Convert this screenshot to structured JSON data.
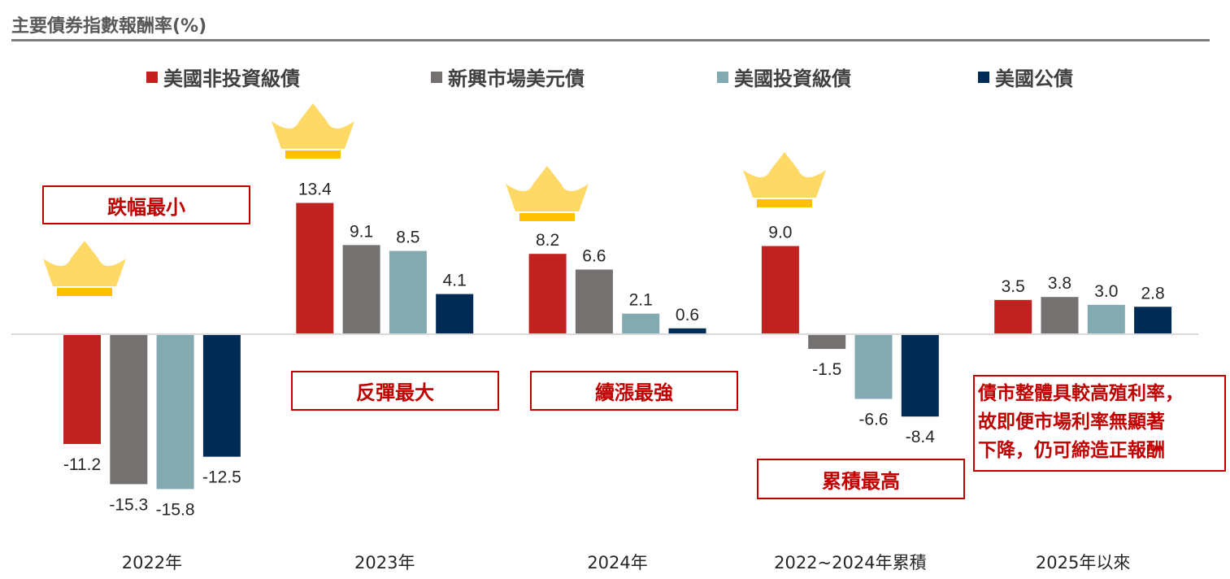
{
  "title": "主要債券指數報酬率(%)",
  "colors": {
    "high_yield": "#c0221f",
    "em_usd": "#767171",
    "investment_grade": "#84aab1",
    "treasury": "#002b55",
    "crown": "#ffd966",
    "callout": "#c00000",
    "axis": "#d9d9d9"
  },
  "chart_data": {
    "type": "bar",
    "title": "主要債券指數報酬率(%)",
    "categories": [
      "2022年",
      "2023年",
      "2024年",
      "2022~2024年累積",
      "2025年以來"
    ],
    "series": [
      {
        "name": "美國非投資級債",
        "values": [
          -11.2,
          13.4,
          8.2,
          9.0,
          3.5
        ]
      },
      {
        "name": "新興市場美元債",
        "values": [
          -15.3,
          9.1,
          6.6,
          -1.5,
          3.8
        ]
      },
      {
        "name": "美國投資級債",
        "values": [
          -15.8,
          8.5,
          2.1,
          -6.6,
          3.0
        ]
      },
      {
        "name": "美國公債",
        "values": [
          -12.5,
          4.1,
          0.6,
          -8.4,
          2.8
        ]
      }
    ],
    "value_labels": [
      [
        "-11.2",
        "13.4",
        "8.2",
        "9.0",
        "3.5"
      ],
      [
        "-15.3",
        "9.1",
        "6.6",
        "-1.5",
        "3.8"
      ],
      [
        "-15.8",
        "8.5",
        "2.1",
        "-6.6",
        "3.0"
      ],
      [
        "-12.5",
        "4.1",
        "0.6",
        "-8.4",
        "2.8"
      ]
    ],
    "legend_position": "top",
    "grid": false,
    "xlabel": "",
    "ylabel": ""
  },
  "callouts": {
    "smallest_drop": "跌幅最小",
    "biggest_rebound": "反彈最大",
    "strongest_rally": "續漲最強",
    "highest_cumulative": "累積最高",
    "note_lines": [
      "債市整體具較高殖利率，",
      "故即便市場利率無顯著",
      "下降，仍可締造正報酬"
    ]
  },
  "crowns": [
    {
      "category": "2022年",
      "icon": "crown-icon"
    },
    {
      "category": "2023年",
      "icon": "crown-icon"
    },
    {
      "category": "2024年",
      "icon": "crown-icon"
    },
    {
      "category": "2022~2024年累積",
      "icon": "crown-icon"
    }
  ]
}
